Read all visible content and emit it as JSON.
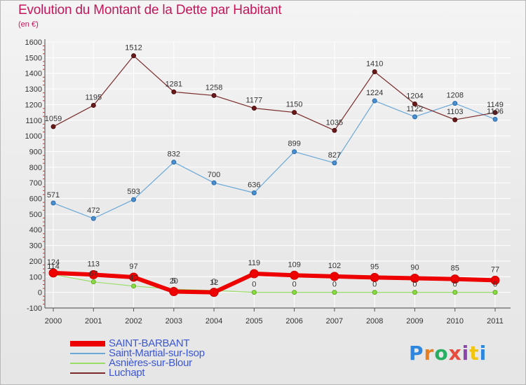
{
  "title": "Evolution du Montant de la Dette par Habitant",
  "subtitle": "(en €)",
  "logo": {
    "text": "Proxiti",
    "colors": [
      "#2e86de",
      "#e67e22",
      "#27ae60",
      "#e74c3c",
      "#8e44ad",
      "#f1c40f",
      "#2e86de"
    ]
  },
  "chart_data": {
    "type": "line",
    "title": "Evolution du Montant de la Dette par Habitant",
    "ylabel": "(en €)",
    "x": [
      "2000",
      "2001",
      "2002",
      "2003",
      "2004",
      "2005",
      "2006",
      "2007",
      "2008",
      "2009",
      "2010",
      "2011"
    ],
    "ylim": [
      -100,
      1600
    ],
    "yticks": [
      "-100",
      "0",
      "100",
      "200",
      "300",
      "400",
      "500",
      "600",
      "700",
      "800",
      "900",
      "1000",
      "1100",
      "1200",
      "1300",
      "1400",
      "1500",
      "1600"
    ],
    "grid": true,
    "series": [
      {
        "name": "SAINT-BARBANT",
        "color": "#ee0000",
        "values": [
          124,
          113,
          97,
          5,
          0,
          119,
          109,
          102,
          95,
          90,
          85,
          77
        ],
        "labels": [
          "124",
          "113",
          "97",
          "5",
          "0",
          "119",
          "109",
          "102",
          "95",
          "90",
          "85",
          "77"
        ]
      },
      {
        "name": "Saint-Martial-sur-Isop",
        "color": "#6aa8d8",
        "values": [
          571,
          472,
          593,
          832,
          700,
          636,
          899,
          827,
          1224,
          1122,
          1208,
          1106
        ],
        "labels": [
          "571",
          "472",
          "593",
          "832",
          "700",
          "636",
          "899",
          "827",
          "1224",
          "1122",
          "1208",
          "1106"
        ]
      },
      {
        "name": "Asnières-sur-Blour",
        "color": "#99dd66",
        "values": [
          114,
          67,
          40,
          20,
          12,
          0,
          0,
          0,
          0,
          0,
          0,
          0
        ],
        "labels": [
          "114",
          "67",
          "40",
          "20",
          "12",
          "0",
          "0",
          "0",
          "0",
          "0",
          "0",
          "0"
        ]
      },
      {
        "name": "Luchapt",
        "color": "#7a2a2a",
        "values": [
          1059,
          1195,
          1512,
          1281,
          1258,
          1177,
          1150,
          1035,
          1410,
          1204,
          1103,
          1149
        ],
        "labels": [
          "1059",
          "1195",
          "1512",
          "1281",
          "1258",
          "1177",
          "1150",
          "1035",
          "1410",
          "1204",
          "1103",
          "1149"
        ]
      }
    ],
    "legend": [
      "SAINT-BARBANT",
      "Saint-Martial-sur-Isop",
      "Asnières-sur-Blour",
      "Luchapt"
    ],
    "legend_position": "bottom-left"
  }
}
